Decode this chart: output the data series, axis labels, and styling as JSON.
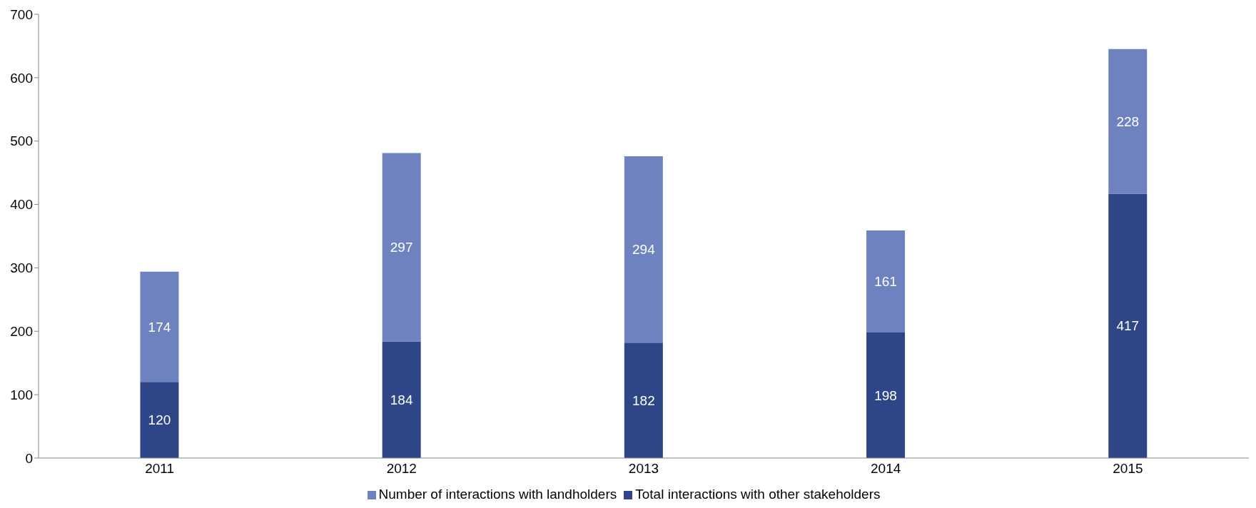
{
  "chart_data": {
    "type": "bar",
    "stacked": true,
    "categories": [
      "2011",
      "2012",
      "2013",
      "2014",
      "2015"
    ],
    "series": [
      {
        "name": "Total interactions with other stakeholders",
        "color": "#2e4688",
        "values": [
          120,
          184,
          182,
          198,
          417
        ]
      },
      {
        "name": "Number of interactions with landholders",
        "color": "#6f82c0",
        "values": [
          174,
          297,
          294,
          161,
          228
        ]
      }
    ],
    "ylim": [
      0,
      700
    ],
    "yticks": [
      0,
      100,
      200,
      300,
      400,
      500,
      600,
      700
    ],
    "data_labels": true,
    "grid": false,
    "legend": "bottom"
  }
}
